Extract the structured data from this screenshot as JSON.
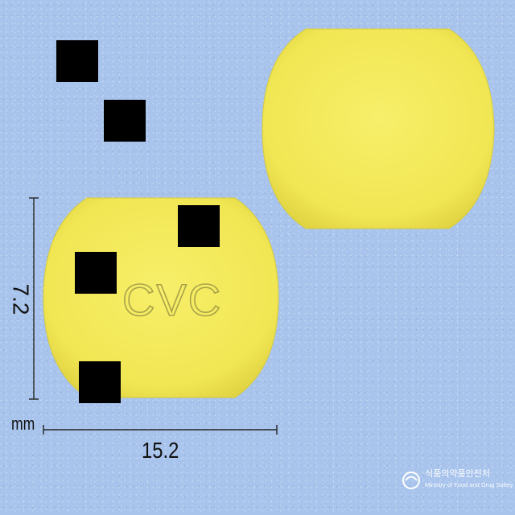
{
  "image": {
    "subject": "two yellow oblong tablets",
    "background_color": "#a8c4ec",
    "tablet_color": "#f3ea5a"
  },
  "tablet_front": {
    "imprint": "CVC"
  },
  "dimensions": {
    "width_label": "15.2",
    "height_label": "7.2",
    "unit_label": "mm"
  },
  "watermark": {
    "korean": "식품의약품안전처",
    "english": "Ministry of Food and Drug Safety"
  },
  "redactions": {
    "count": 5,
    "color": "#000000"
  }
}
